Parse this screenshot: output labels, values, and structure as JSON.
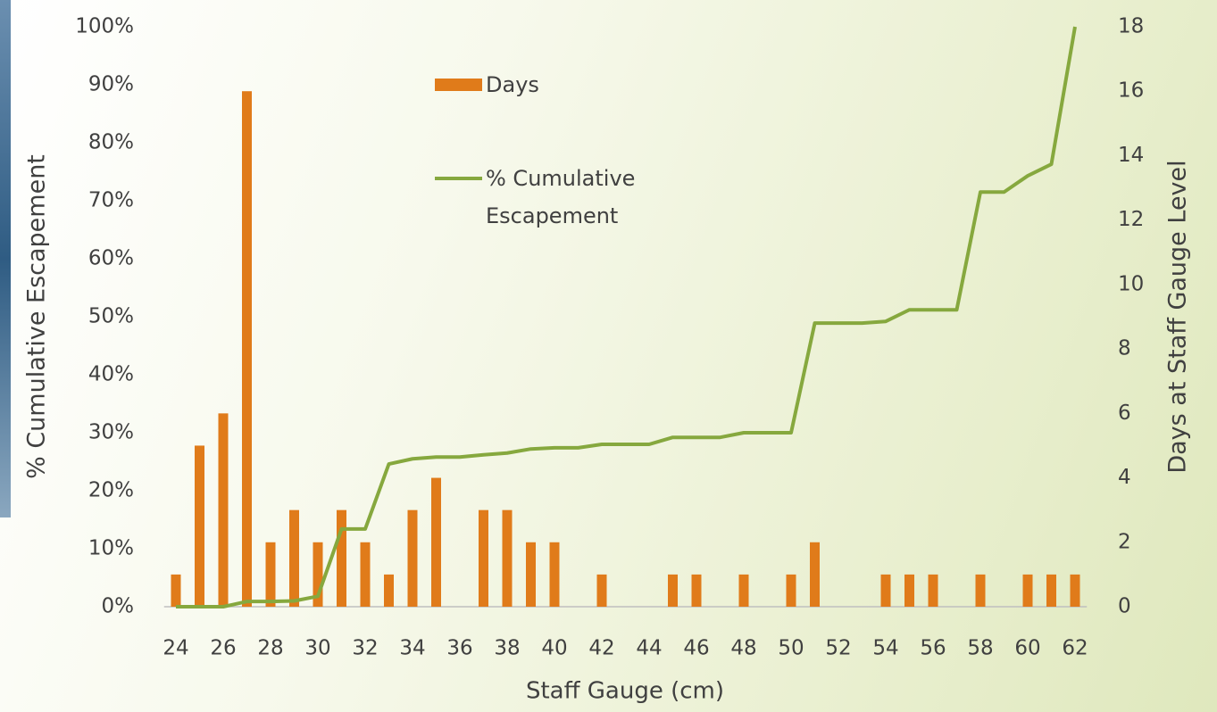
{
  "chart_data": {
    "type": "bar_line",
    "x_label": "Staff Gauge (cm)",
    "y_label": "% Cumulative Escapement",
    "y2_label": "Days at Staff Gauge Level",
    "categories": [
      "24",
      null,
      "26",
      null,
      "28",
      null,
      "30",
      null,
      "32",
      null,
      "34",
      null,
      "36",
      null,
      "38",
      null,
      "40",
      null,
      "42",
      null,
      "44",
      null,
      "46",
      null,
      "48",
      null,
      "50",
      null,
      "52",
      null,
      "54",
      null,
      "56",
      null,
      "58",
      null,
      "60",
      null,
      "62"
    ],
    "series": [
      {
        "name": "Days",
        "type": "bar",
        "axis": "y2",
        "color": "#e07b1a",
        "values": [
          1,
          5,
          6,
          16,
          2,
          3,
          2,
          3,
          2,
          1,
          3,
          4,
          0,
          3,
          3,
          2,
          2,
          0,
          1,
          0,
          0,
          1,
          1,
          0,
          1,
          0,
          1,
          2,
          0,
          0,
          1,
          1,
          1,
          0,
          1,
          0,
          1,
          1,
          1
        ]
      },
      {
        "name": "% Cumulative Escapement",
        "type": "line",
        "axis": "y",
        "color": "#86a83e",
        "values": [
          0,
          0,
          0,
          0.9,
          0.9,
          1.0,
          1.8,
          13.4,
          13.4,
          24.6,
          25.5,
          25.8,
          25.8,
          26.2,
          26.5,
          27.2,
          27.4,
          27.4,
          28.0,
          28.0,
          28.0,
          29.2,
          29.2,
          29.2,
          30.0,
          30.0,
          30.0,
          48.9,
          48.9,
          48.9,
          49.2,
          51.2,
          51.2,
          51.2,
          71.5,
          71.5,
          74.3,
          76.3,
          100
        ]
      }
    ],
    "ylim": [
      0,
      100
    ],
    "yticks": [
      {
        "value": 0,
        "label": "0%"
      },
      {
        "value": 10,
        "label": "10%"
      },
      {
        "value": 20,
        "label": "20%"
      },
      {
        "value": 30,
        "label": "30%"
      },
      {
        "value": 40,
        "label": "40%"
      },
      {
        "value": 50,
        "label": "50%"
      },
      {
        "value": 60,
        "label": "60%"
      },
      {
        "value": 70,
        "label": "70%"
      },
      {
        "value": 80,
        "label": "80%"
      },
      {
        "value": 90,
        "label": "90%"
      },
      {
        "value": 100,
        "label": "100%"
      }
    ],
    "y2lim": [
      0,
      18
    ],
    "y2ticks": [
      0,
      2,
      4,
      6,
      8,
      10,
      12,
      14,
      16,
      18
    ],
    "grid": false
  }
}
